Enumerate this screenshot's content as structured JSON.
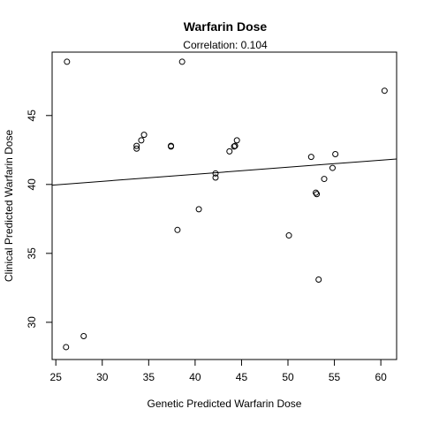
{
  "chart_data": {
    "type": "scatter",
    "title": "Warfarin Dose",
    "subtitle": "Correlation: 0.104",
    "xlabel": "Genetic Predicted Warfarin Dose",
    "ylabel": "Clinical Predicted Warfarin Dose",
    "xlim": [
      24.6,
      61.7
    ],
    "ylim": [
      27.3,
      49.6
    ],
    "xticks": [
      25,
      30,
      35,
      40,
      45,
      50,
      55,
      60
    ],
    "yticks": [
      30,
      35,
      40,
      45
    ],
    "grid": false,
    "marker": "open-circle",
    "color": "#000000",
    "regression_line": {
      "x": [
        24.6,
        61.7
      ],
      "y": [
        39.95,
        41.85
      ]
    },
    "points": [
      {
        "x": 26.2,
        "y": 48.9
      },
      {
        "x": 38.6,
        "y": 48.9
      },
      {
        "x": 60.4,
        "y": 46.8
      },
      {
        "x": 34.5,
        "y": 43.6
      },
      {
        "x": 34.2,
        "y": 43.2
      },
      {
        "x": 33.7,
        "y": 42.8
      },
      {
        "x": 33.7,
        "y": 42.6
      },
      {
        "x": 37.4,
        "y": 42.8
      },
      {
        "x": 37.4,
        "y": 42.75
      },
      {
        "x": 44.5,
        "y": 43.2
      },
      {
        "x": 44.3,
        "y": 42.8
      },
      {
        "x": 44.2,
        "y": 42.75
      },
      {
        "x": 43.7,
        "y": 42.4
      },
      {
        "x": 52.5,
        "y": 42.0
      },
      {
        "x": 55.1,
        "y": 42.2
      },
      {
        "x": 54.8,
        "y": 41.2
      },
      {
        "x": 42.2,
        "y": 40.8
      },
      {
        "x": 42.2,
        "y": 40.5
      },
      {
        "x": 53.9,
        "y": 40.4
      },
      {
        "x": 53.0,
        "y": 39.4
      },
      {
        "x": 53.1,
        "y": 39.3
      },
      {
        "x": 40.4,
        "y": 38.2
      },
      {
        "x": 38.1,
        "y": 36.7
      },
      {
        "x": 50.1,
        "y": 36.3
      },
      {
        "x": 53.3,
        "y": 33.1
      },
      {
        "x": 28.0,
        "y": 29.0
      },
      {
        "x": 26.1,
        "y": 28.2
      }
    ]
  }
}
